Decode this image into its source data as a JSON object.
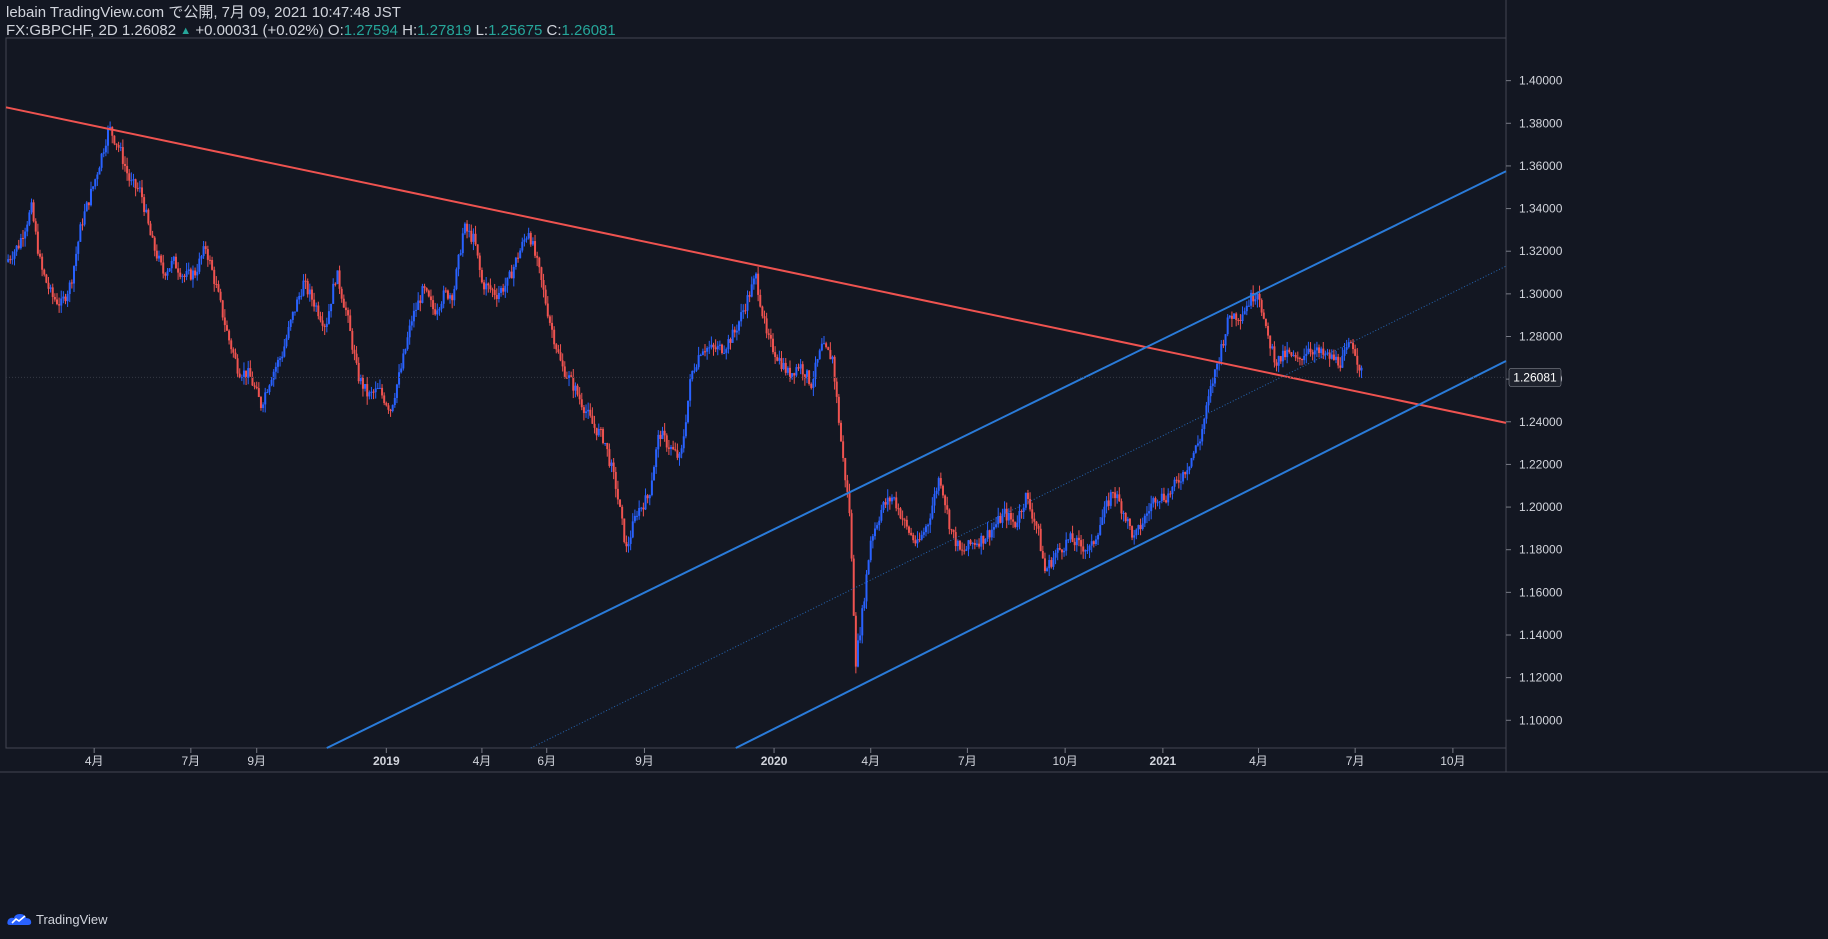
{
  "header": {
    "author_line": "lebain TradingView.com で公開, 7月 09, 2021 10:47:48 JST",
    "symbol": "FX:GBPCHF, 2D 1.26082",
    "change_arrow": "▲",
    "change": "+0.00031 (+0.02%)",
    "o_label": "O:",
    "o_value": "1.27594",
    "h_label": "H:",
    "h_value": "1.27819",
    "l_label": "L:",
    "l_value": "1.25675",
    "c_label": "C:",
    "c_value": "1.26081"
  },
  "footer": {
    "brand": "TradingView"
  },
  "colors": {
    "background": "#131722",
    "up_candle": "#2962ff",
    "down_candle": "#ef5350",
    "trendline_red": "#ef5350",
    "channel_blue": "#2a7bd9",
    "axis_text": "#d1d4dc",
    "last_price_badge": "#1e222d"
  },
  "chart_data": {
    "type": "candlestick",
    "symbol": "FX:GBPCHF",
    "interval": "2D",
    "last_price": 1.26081,
    "last_price_label": "1.26081",
    "y_range": [
      1.087,
      1.42
    ],
    "x_range": [
      "2018-01-08",
      "2021-11-20"
    ],
    "y_ticks": [
      {
        "v": 1.1,
        "label": "1.10000"
      },
      {
        "v": 1.12,
        "label": "1.12000"
      },
      {
        "v": 1.14,
        "label": "1.14000"
      },
      {
        "v": 1.16,
        "label": "1.16000"
      },
      {
        "v": 1.18,
        "label": "1.18000"
      },
      {
        "v": 1.2,
        "label": "1.20000"
      },
      {
        "v": 1.22,
        "label": "1.22000"
      },
      {
        "v": 1.24,
        "label": "1.24000"
      },
      {
        "v": 1.26,
        "label": "1.26000"
      },
      {
        "v": 1.28,
        "label": "1.28000"
      },
      {
        "v": 1.3,
        "label": "1.30000"
      },
      {
        "v": 1.32,
        "label": "1.32000"
      },
      {
        "v": 1.34,
        "label": "1.34000"
      },
      {
        "v": 1.36,
        "label": "1.36000"
      },
      {
        "v": 1.38,
        "label": "1.38000"
      },
      {
        "v": 1.4,
        "label": "1.40000"
      }
    ],
    "x_ticks": [
      {
        "date": "2018-04-01",
        "label": "4月",
        "bold": false
      },
      {
        "date": "2018-07-01",
        "label": "7月",
        "bold": false
      },
      {
        "date": "2018-09-01",
        "label": "9月",
        "bold": false
      },
      {
        "date": "2019-01-01",
        "label": "2019",
        "bold": true
      },
      {
        "date": "2019-04-01",
        "label": "4月",
        "bold": false
      },
      {
        "date": "2019-06-01",
        "label": "6月",
        "bold": false
      },
      {
        "date": "2019-09-01",
        "label": "9月",
        "bold": false
      },
      {
        "date": "2020-01-01",
        "label": "2020",
        "bold": true
      },
      {
        "date": "2020-04-01",
        "label": "4月",
        "bold": false
      },
      {
        "date": "2020-07-01",
        "label": "7月",
        "bold": false
      },
      {
        "date": "2020-10-01",
        "label": "10月",
        "bold": false
      },
      {
        "date": "2021-01-01",
        "label": "2021",
        "bold": true
      },
      {
        "date": "2021-04-01",
        "label": "4月",
        "bold": false
      },
      {
        "date": "2021-07-01",
        "label": "7月",
        "bold": false
      },
      {
        "date": "2021-10-01",
        "label": "10月",
        "bold": false
      }
    ],
    "close_path": [
      [
        "2018-01-08",
        1.315
      ],
      [
        "2018-01-20",
        1.323
      ],
      [
        "2018-02-01",
        1.34
      ],
      [
        "2018-02-10",
        1.312
      ],
      [
        "2018-02-20",
        1.299
      ],
      [
        "2018-03-01",
        1.295
      ],
      [
        "2018-03-10",
        1.305
      ],
      [
        "2018-03-20",
        1.333
      ],
      [
        "2018-04-01",
        1.352
      ],
      [
        "2018-04-15",
        1.378
      ],
      [
        "2018-04-25",
        1.368
      ],
      [
        "2018-05-05",
        1.352
      ],
      [
        "2018-05-15",
        1.348
      ],
      [
        "2018-05-25",
        1.325
      ],
      [
        "2018-06-05",
        1.31
      ],
      [
        "2018-06-15",
        1.315
      ],
      [
        "2018-06-25",
        1.308
      ],
      [
        "2018-07-05",
        1.31
      ],
      [
        "2018-07-15",
        1.322
      ],
      [
        "2018-07-25",
        1.303
      ],
      [
        "2018-08-05",
        1.28
      ],
      [
        "2018-08-15",
        1.264
      ],
      [
        "2018-08-25",
        1.262
      ],
      [
        "2018-09-05",
        1.248
      ],
      [
        "2018-09-15",
        1.262
      ],
      [
        "2018-09-25",
        1.272
      ],
      [
        "2018-10-05",
        1.29
      ],
      [
        "2018-10-15",
        1.305
      ],
      [
        "2018-10-25",
        1.296
      ],
      [
        "2018-11-05",
        1.285
      ],
      [
        "2018-11-15",
        1.31
      ],
      [
        "2018-11-25",
        1.29
      ],
      [
        "2018-12-05",
        1.262
      ],
      [
        "2018-12-15",
        1.252
      ],
      [
        "2018-12-25",
        1.255
      ],
      [
        "2019-01-05",
        1.246
      ],
      [
        "2019-01-15",
        1.265
      ],
      [
        "2019-01-25",
        1.288
      ],
      [
        "2019-02-05",
        1.302
      ],
      [
        "2019-02-15",
        1.292
      ],
      [
        "2019-02-25",
        1.3
      ],
      [
        "2019-03-05",
        1.3
      ],
      [
        "2019-03-15",
        1.331
      ],
      [
        "2019-03-25",
        1.325
      ],
      [
        "2019-04-01",
        1.305
      ],
      [
        "2019-04-15",
        1.3
      ],
      [
        "2019-04-25",
        1.305
      ],
      [
        "2019-05-05",
        1.318
      ],
      [
        "2019-05-15",
        1.33
      ],
      [
        "2019-05-25",
        1.31
      ],
      [
        "2019-06-05",
        1.285
      ],
      [
        "2019-06-15",
        1.266
      ],
      [
        "2019-06-25",
        1.258
      ],
      [
        "2019-07-05",
        1.248
      ],
      [
        "2019-07-15",
        1.238
      ],
      [
        "2019-07-25",
        1.232
      ],
      [
        "2019-08-05",
        1.21
      ],
      [
        "2019-08-15",
        1.18
      ],
      [
        "2019-08-25",
        1.198
      ],
      [
        "2019-09-05",
        1.205
      ],
      [
        "2019-09-15",
        1.235
      ],
      [
        "2019-09-25",
        1.228
      ],
      [
        "2019-10-05",
        1.222
      ],
      [
        "2019-10-15",
        1.262
      ],
      [
        "2019-10-25",
        1.275
      ],
      [
        "2019-11-05",
        1.274
      ],
      [
        "2019-11-15",
        1.275
      ],
      [
        "2019-11-25",
        1.282
      ],
      [
        "2019-12-05",
        1.295
      ],
      [
        "2019-12-15",
        1.308
      ],
      [
        "2019-12-25",
        1.28
      ],
      [
        "2020-01-05",
        1.27
      ],
      [
        "2020-01-15",
        1.262
      ],
      [
        "2020-01-25",
        1.267
      ],
      [
        "2020-02-05",
        1.258
      ],
      [
        "2020-02-15",
        1.275
      ],
      [
        "2020-02-25",
        1.27
      ],
      [
        "2020-03-05",
        1.226
      ],
      [
        "2020-03-12",
        1.198
      ],
      [
        "2020-03-18",
        1.128
      ],
      [
        "2020-03-24",
        1.15
      ],
      [
        "2020-04-01",
        1.185
      ],
      [
        "2020-04-12",
        1.2
      ],
      [
        "2020-04-22",
        1.205
      ],
      [
        "2020-05-05",
        1.19
      ],
      [
        "2020-05-15",
        1.182
      ],
      [
        "2020-05-25",
        1.193
      ],
      [
        "2020-06-05",
        1.215
      ],
      [
        "2020-06-15",
        1.19
      ],
      [
        "2020-06-25",
        1.178
      ],
      [
        "2020-07-05",
        1.183
      ],
      [
        "2020-07-15",
        1.185
      ],
      [
        "2020-07-25",
        1.19
      ],
      [
        "2020-08-05",
        1.197
      ],
      [
        "2020-08-15",
        1.192
      ],
      [
        "2020-08-25",
        1.205
      ],
      [
        "2020-09-05",
        1.19
      ],
      [
        "2020-09-12",
        1.17
      ],
      [
        "2020-09-22",
        1.178
      ],
      [
        "2020-10-05",
        1.185
      ],
      [
        "2020-10-15",
        1.182
      ],
      [
        "2020-10-25",
        1.18
      ],
      [
        "2020-11-05",
        1.195
      ],
      [
        "2020-11-15",
        1.208
      ],
      [
        "2020-11-25",
        1.198
      ],
      [
        "2020-12-05",
        1.185
      ],
      [
        "2020-12-15",
        1.195
      ],
      [
        "2020-12-25",
        1.205
      ],
      [
        "2021-01-05",
        1.205
      ],
      [
        "2021-01-15",
        1.212
      ],
      [
        "2021-01-25",
        1.22
      ],
      [
        "2021-02-05",
        1.232
      ],
      [
        "2021-02-15",
        1.255
      ],
      [
        "2021-02-25",
        1.275
      ],
      [
        "2021-03-05",
        1.29
      ],
      [
        "2021-03-15",
        1.29
      ],
      [
        "2021-03-25",
        1.298
      ],
      [
        "2021-04-01",
        1.302
      ],
      [
        "2021-04-08",
        1.282
      ],
      [
        "2021-04-18",
        1.268
      ],
      [
        "2021-04-28",
        1.272
      ],
      [
        "2021-05-08",
        1.268
      ],
      [
        "2021-05-18",
        1.275
      ],
      [
        "2021-05-28",
        1.272
      ],
      [
        "2021-06-08",
        1.27
      ],
      [
        "2021-06-18",
        1.268
      ],
      [
        "2021-06-28",
        1.278
      ],
      [
        "2021-07-08",
        1.261
      ]
    ],
    "drawings": [
      {
        "name": "downtrend-line",
        "color": "red",
        "from": [
          "2018-01-08",
          1.3875
        ],
        "to": [
          "2021-11-20",
          1.2395
        ]
      },
      {
        "name": "channel-upper-line",
        "color": "blue",
        "from": [
          "2018-11-06",
          1.087
        ],
        "to": [
          "2021-11-20",
          1.3575
        ]
      },
      {
        "name": "channel-lower-line",
        "color": "blue",
        "from": [
          "2019-11-26",
          1.087
        ],
        "to": [
          "2021-11-20",
          1.2685
        ]
      },
      {
        "name": "channel-mid-line",
        "color": "blue",
        "dotted": true,
        "from": [
          "2019-05-17",
          1.087
        ],
        "to": [
          "2021-11-20",
          1.313
        ]
      }
    ]
  }
}
